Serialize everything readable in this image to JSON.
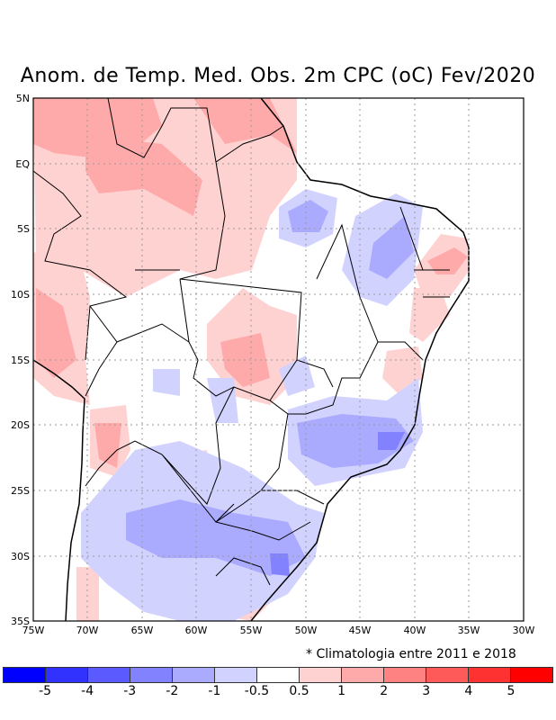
{
  "title": "Anom. de Temp. Med. Obs. 2m CPC (oC) Fev/2020",
  "map": {
    "lat_labels": [
      "5N",
      "EQ",
      "5S",
      "10S",
      "15S",
      "20S",
      "25S",
      "30S",
      "35S"
    ],
    "lon_labels": [
      "75W",
      "70W",
      "65W",
      "60W",
      "55W",
      "50W",
      "45W",
      "40W",
      "35W",
      "30W"
    ],
    "extent": {
      "lon": [
        -75,
        -30
      ],
      "lat": [
        -35,
        5
      ]
    }
  },
  "note": "* Climatologia entre 2011 e 2018",
  "colorbar": {
    "colors": [
      "#0000ff",
      "#3232ff",
      "#5a5aff",
      "#8282ff",
      "#aaaaff",
      "#d2d2ff",
      "#ffffff",
      "#ffd2d2",
      "#ffaaaa",
      "#ff8282",
      "#ff5a5a",
      "#ff3232",
      "#ff0000"
    ],
    "labels": [
      "-5",
      "-4",
      "-3",
      "-2",
      "-1",
      "-0.5",
      "0.5",
      "1",
      "2",
      "3",
      "4",
      "5"
    ]
  }
}
